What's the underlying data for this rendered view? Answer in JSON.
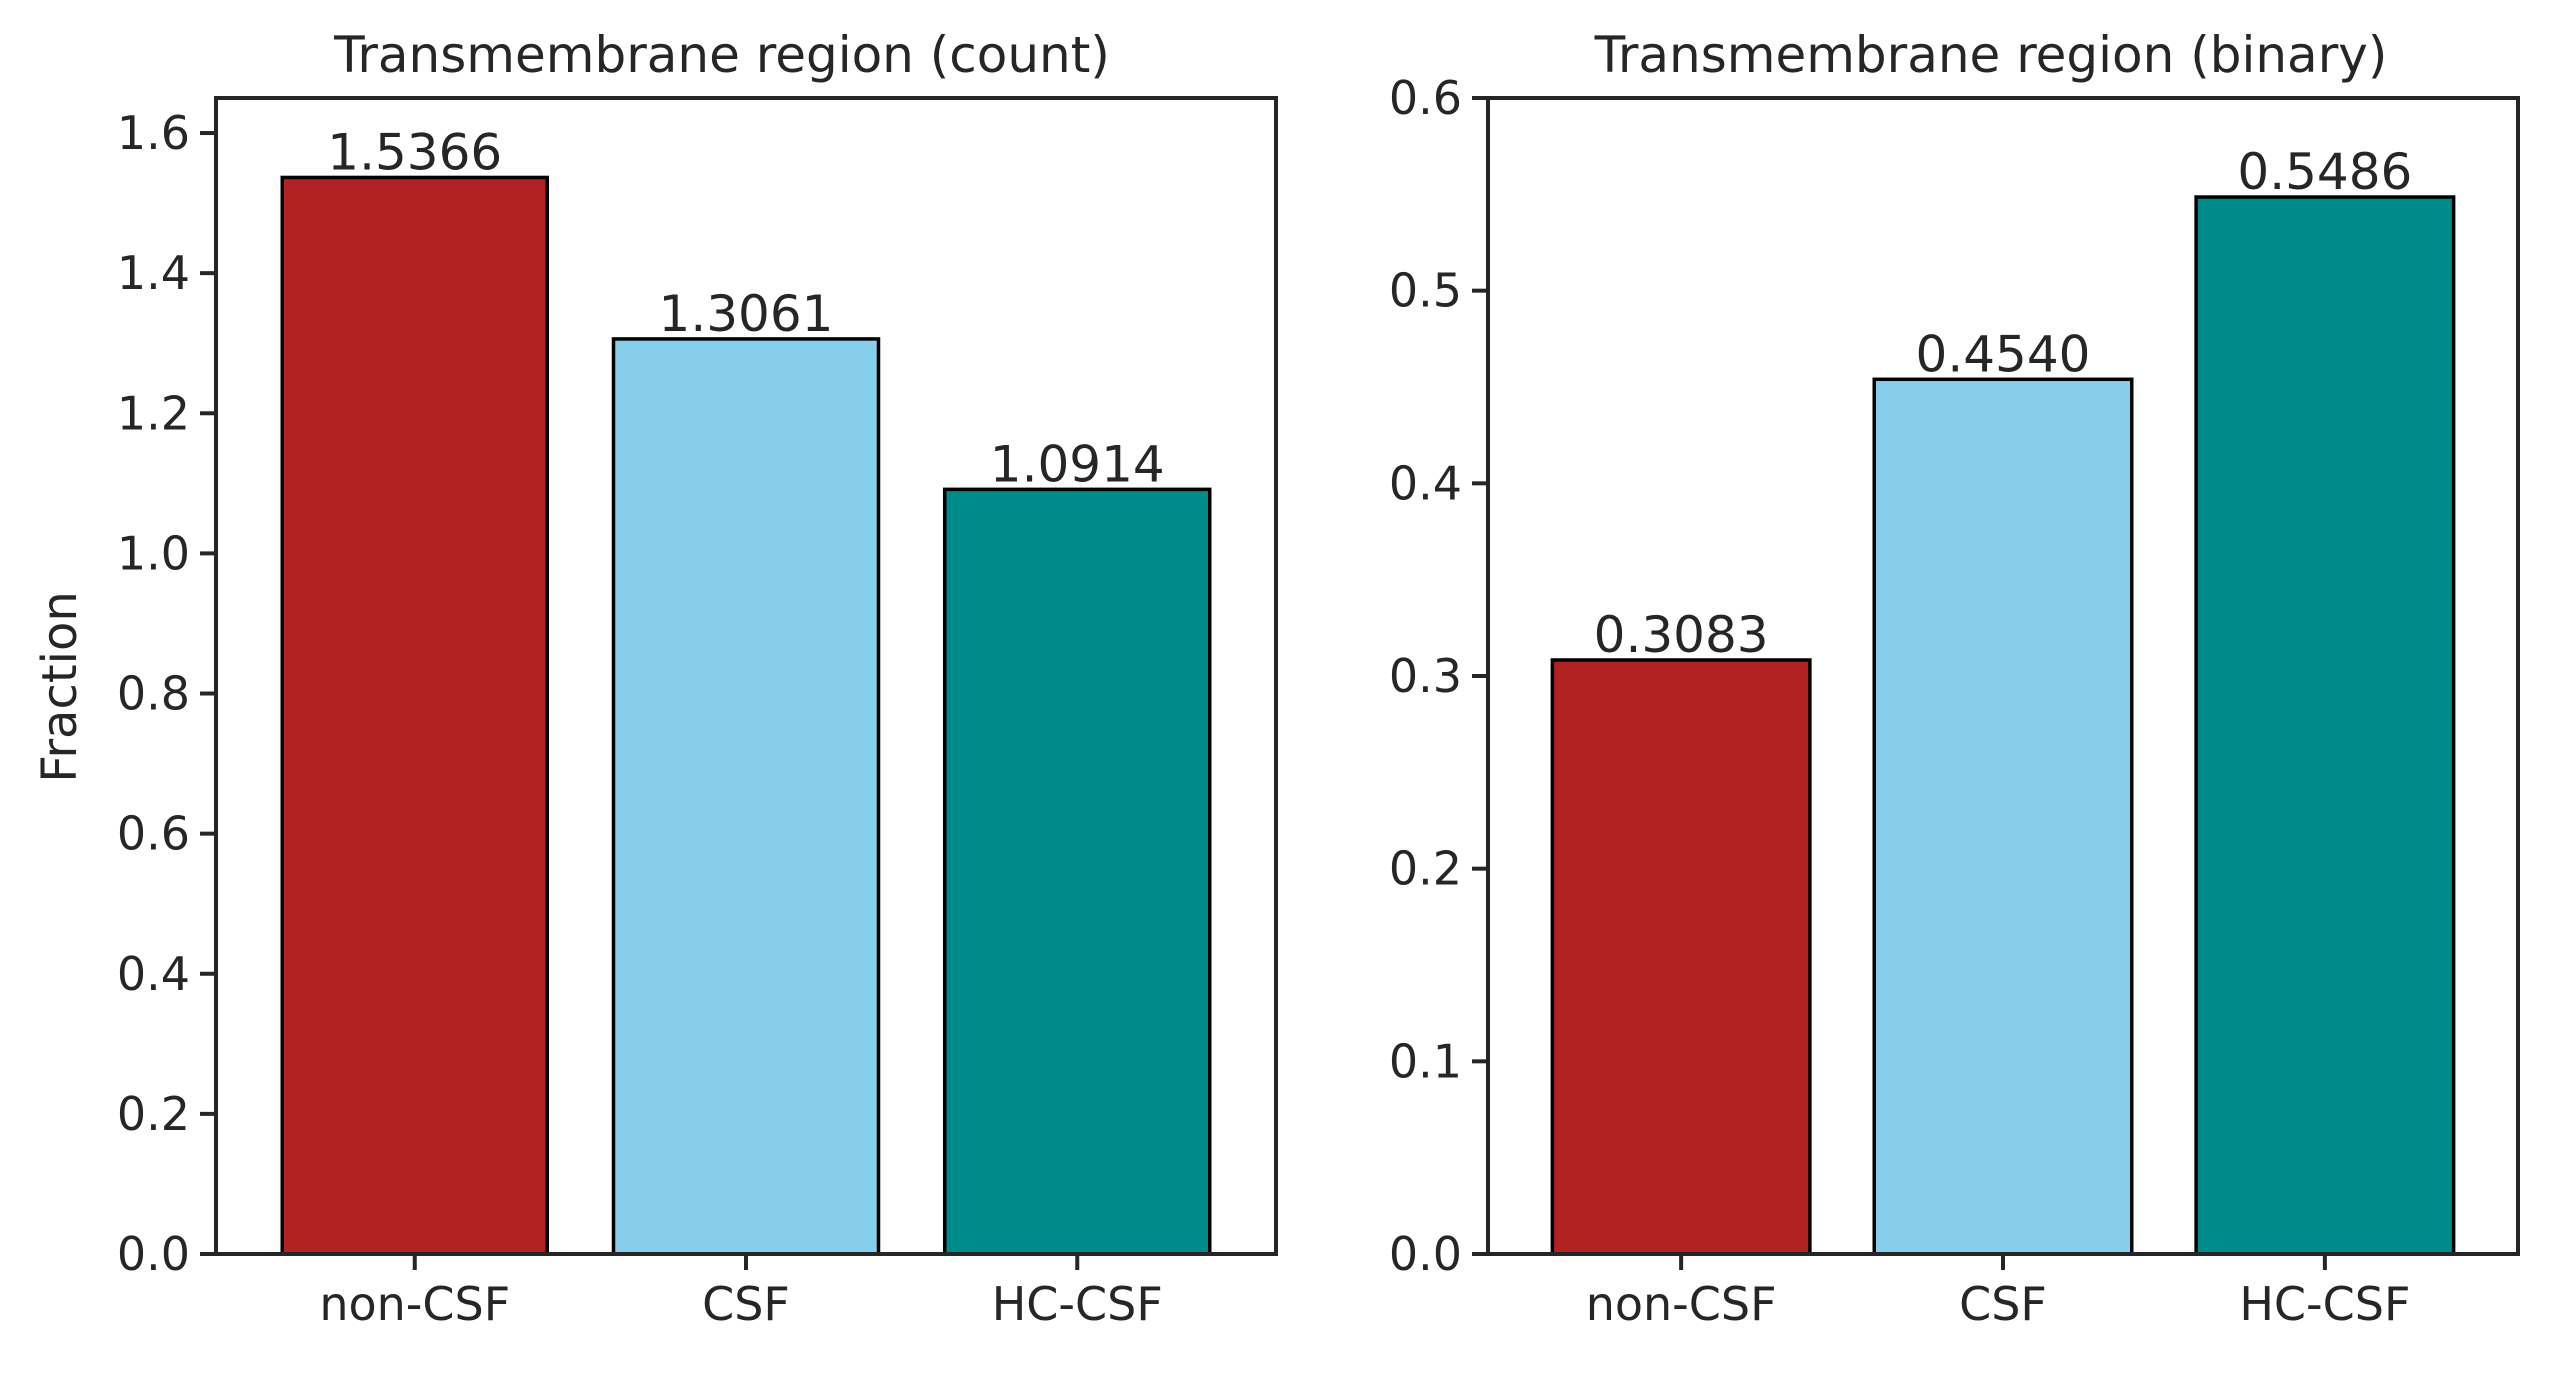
{
  "chart_data": [
    {
      "type": "bar",
      "title": "Transmembrane region (count)",
      "xlabel": "",
      "ylabel": "Fraction",
      "categories": [
        "non-CSF",
        "CSF",
        "HC-CSF"
      ],
      "values": [
        1.5366,
        1.3061,
        1.0914
      ],
      "value_labels": [
        "1.5366",
        "1.3061",
        "1.0914"
      ],
      "colors": [
        "#b22222",
        "#87ceeb",
        "#008b8b"
      ],
      "ylim": [
        0,
        1.65
      ],
      "yticks": [
        0.0,
        0.2,
        0.4,
        0.6,
        0.8,
        1.0,
        1.2,
        1.4,
        1.6
      ],
      "ytick_labels": [
        "0.0",
        "0.2",
        "0.4",
        "0.6",
        "0.8",
        "1.0",
        "1.2",
        "1.4",
        "1.6"
      ],
      "grid": false,
      "legend": "none"
    },
    {
      "type": "bar",
      "title": "Transmembrane region (binary)",
      "xlabel": "",
      "ylabel": "",
      "categories": [
        "non-CSF",
        "CSF",
        "HC-CSF"
      ],
      "values": [
        0.3083,
        0.454,
        0.5486
      ],
      "value_labels": [
        "0.3083",
        "0.4540",
        "0.5486"
      ],
      "colors": [
        "#b22222",
        "#87ceeb",
        "#008b8b"
      ],
      "ylim": [
        0,
        0.6
      ],
      "yticks": [
        0.0,
        0.1,
        0.2,
        0.3,
        0.4,
        0.5,
        0.6
      ],
      "ytick_labels": [
        "0.0",
        "0.1",
        "0.2",
        "0.3",
        "0.4",
        "0.5",
        "0.6"
      ],
      "grid": false,
      "legend": "none"
    }
  ]
}
